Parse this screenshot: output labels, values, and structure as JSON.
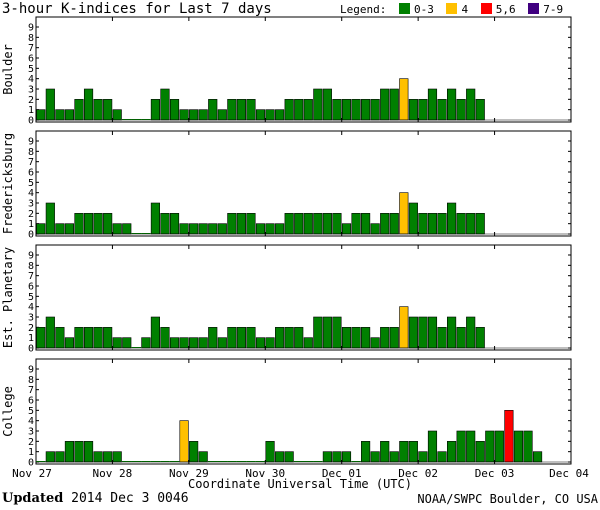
{
  "title": "3-hour K-indices for Last 7 days",
  "legend": {
    "label": "Legend:",
    "items": [
      {
        "label": "0-3",
        "color": "#008000"
      },
      {
        "label": "4",
        "color": "#ffc000"
      },
      {
        "label": "5,6",
        "color": "#ff0000"
      },
      {
        "label": "7-9",
        "color": "#400080"
      }
    ]
  },
  "footer": {
    "updated_label": "Updated",
    "updated_value": "2014 Dec  3 0046",
    "source": "NOAA/SWPC Boulder, CO USA"
  },
  "chart_data": {
    "type": "bar",
    "xlabel": "Coordinate Universal Time (UTC)",
    "x_ticks": [
      "Nov 27",
      "Nov 28",
      "Nov 29",
      "Nov 30",
      "Dec 01",
      "Dec 02",
      "Dec 03",
      "Dec 04"
    ],
    "ylim": [
      0,
      9
    ],
    "y_ticks": [
      "0",
      "1",
      "2",
      "3",
      "4",
      "5",
      "6",
      "7",
      "8",
      "9"
    ],
    "intervals_per_day": 8,
    "panels": [
      {
        "name": "Boulder",
        "values": [
          1,
          3,
          1,
          1,
          2,
          3,
          2,
          2,
          1,
          0,
          0,
          0,
          2,
          3,
          2,
          1,
          1,
          1,
          2,
          1,
          2,
          2,
          2,
          1,
          1,
          1,
          2,
          2,
          2,
          3,
          3,
          2,
          2,
          2,
          2,
          2,
          3,
          3,
          4,
          2,
          2,
          3,
          2,
          3,
          2,
          3,
          2
        ]
      },
      {
        "name": "Fredericksburg",
        "values": [
          1,
          3,
          1,
          1,
          2,
          2,
          2,
          2,
          1,
          1,
          0,
          0,
          3,
          2,
          2,
          1,
          1,
          1,
          1,
          1,
          2,
          2,
          2,
          1,
          1,
          1,
          2,
          2,
          2,
          2,
          2,
          2,
          1,
          2,
          2,
          1,
          2,
          2,
          4,
          3,
          2,
          2,
          2,
          3,
          2,
          2,
          2
        ]
      },
      {
        "name": "Est. Planetary",
        "values": [
          2,
          3,
          2,
          1,
          2,
          2,
          2,
          2,
          1,
          1,
          0,
          1,
          3,
          2,
          1,
          1,
          1,
          1,
          2,
          1,
          2,
          2,
          2,
          1,
          1,
          2,
          2,
          2,
          1,
          3,
          3,
          3,
          2,
          2,
          2,
          1,
          2,
          2,
          4,
          3,
          3,
          3,
          2,
          3,
          2,
          3,
          2
        ]
      },
      {
        "name": "College",
        "values": [
          0,
          1,
          1,
          2,
          2,
          2,
          1,
          1,
          1,
          0,
          0,
          0,
          0,
          0,
          0,
          4,
          2,
          1,
          0,
          0,
          0,
          0,
          0,
          0,
          2,
          1,
          1,
          0,
          0,
          0,
          1,
          1,
          1,
          0,
          2,
          1,
          2,
          1,
          2,
          2,
          1,
          3,
          1,
          2,
          3,
          3,
          2,
          3,
          3,
          5,
          3,
          3,
          1
        ]
      }
    ]
  }
}
